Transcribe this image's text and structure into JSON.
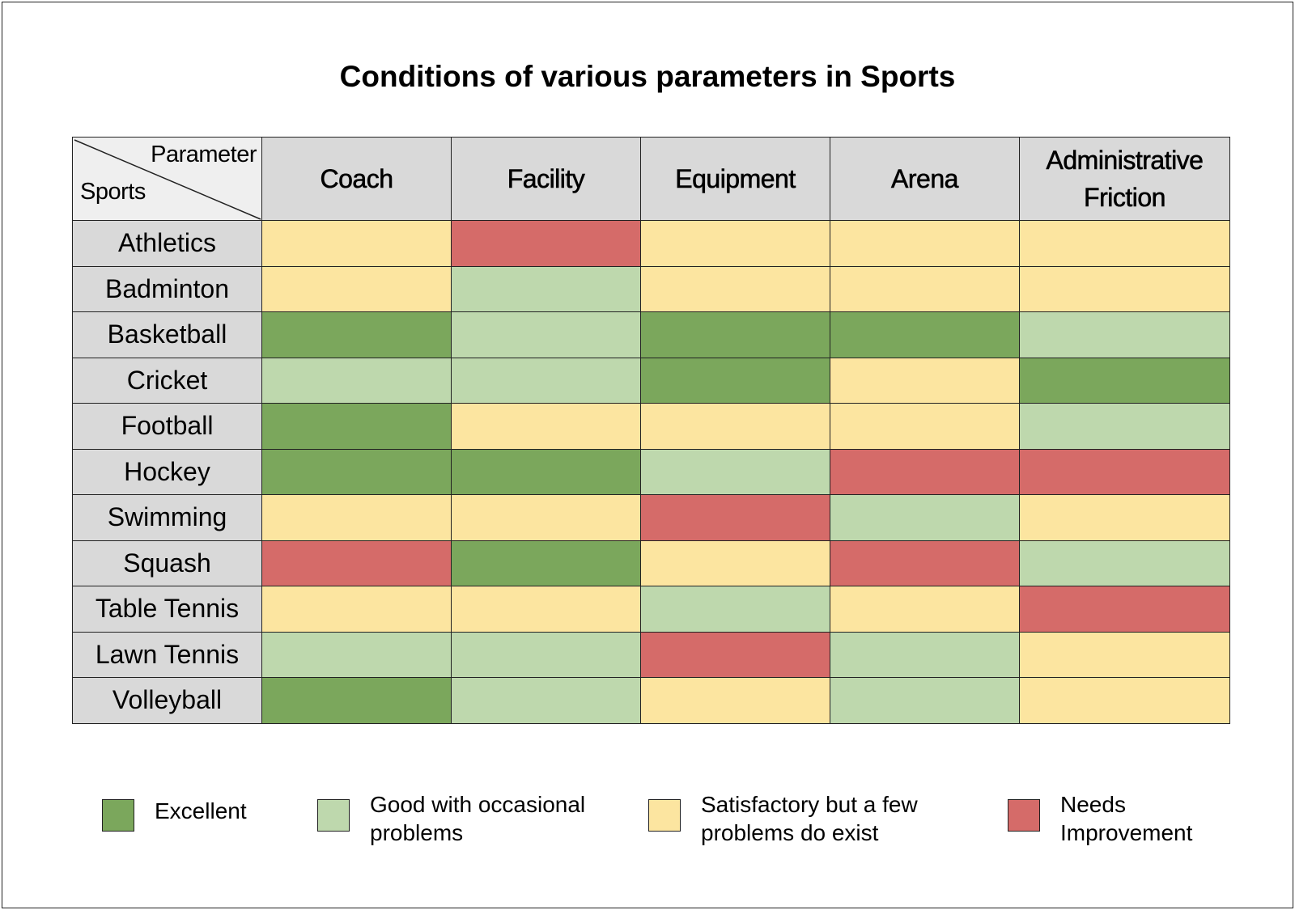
{
  "chart_data": {
    "type": "heatmap",
    "title": "Conditions of various parameters in Sports",
    "corner": {
      "column_label": "Parameter",
      "row_label": "Sports"
    },
    "columns": [
      "Coach",
      "Facility",
      "Equipment",
      "Arena",
      "Administrative Friction"
    ],
    "rows": [
      "Athletics",
      "Badminton",
      "Basketball",
      "Cricket",
      "Football",
      "Hockey",
      "Swimming",
      "Squash",
      "Table Tennis",
      "Lawn Tennis",
      "Volleyball"
    ],
    "levels": [
      {
        "key": "E",
        "label": "Excellent",
        "color": "#7ba75c"
      },
      {
        "key": "G",
        "label": "Good with occasional problems",
        "color": "#bed8ad"
      },
      {
        "key": "S",
        "label": "Satisfactory but a few problems do exist",
        "color": "#fce5a0"
      },
      {
        "key": "N",
        "label": "Needs Improvement",
        "color": "#d56b69"
      }
    ],
    "values": [
      [
        "S",
        "N",
        "S",
        "S",
        "S"
      ],
      [
        "S",
        "G",
        "S",
        "S",
        "S"
      ],
      [
        "E",
        "G",
        "E",
        "E",
        "G"
      ],
      [
        "G",
        "G",
        "E",
        "S",
        "E"
      ],
      [
        "E",
        "S",
        "S",
        "S",
        "G"
      ],
      [
        "E",
        "E",
        "G",
        "N",
        "N"
      ],
      [
        "S",
        "S",
        "N",
        "G",
        "S"
      ],
      [
        "N",
        "E",
        "S",
        "N",
        "G"
      ],
      [
        "S",
        "S",
        "G",
        "S",
        "N"
      ],
      [
        "G",
        "G",
        "N",
        "G",
        "S"
      ],
      [
        "E",
        "G",
        "S",
        "G",
        "S"
      ]
    ],
    "legend_position": "bottom"
  }
}
